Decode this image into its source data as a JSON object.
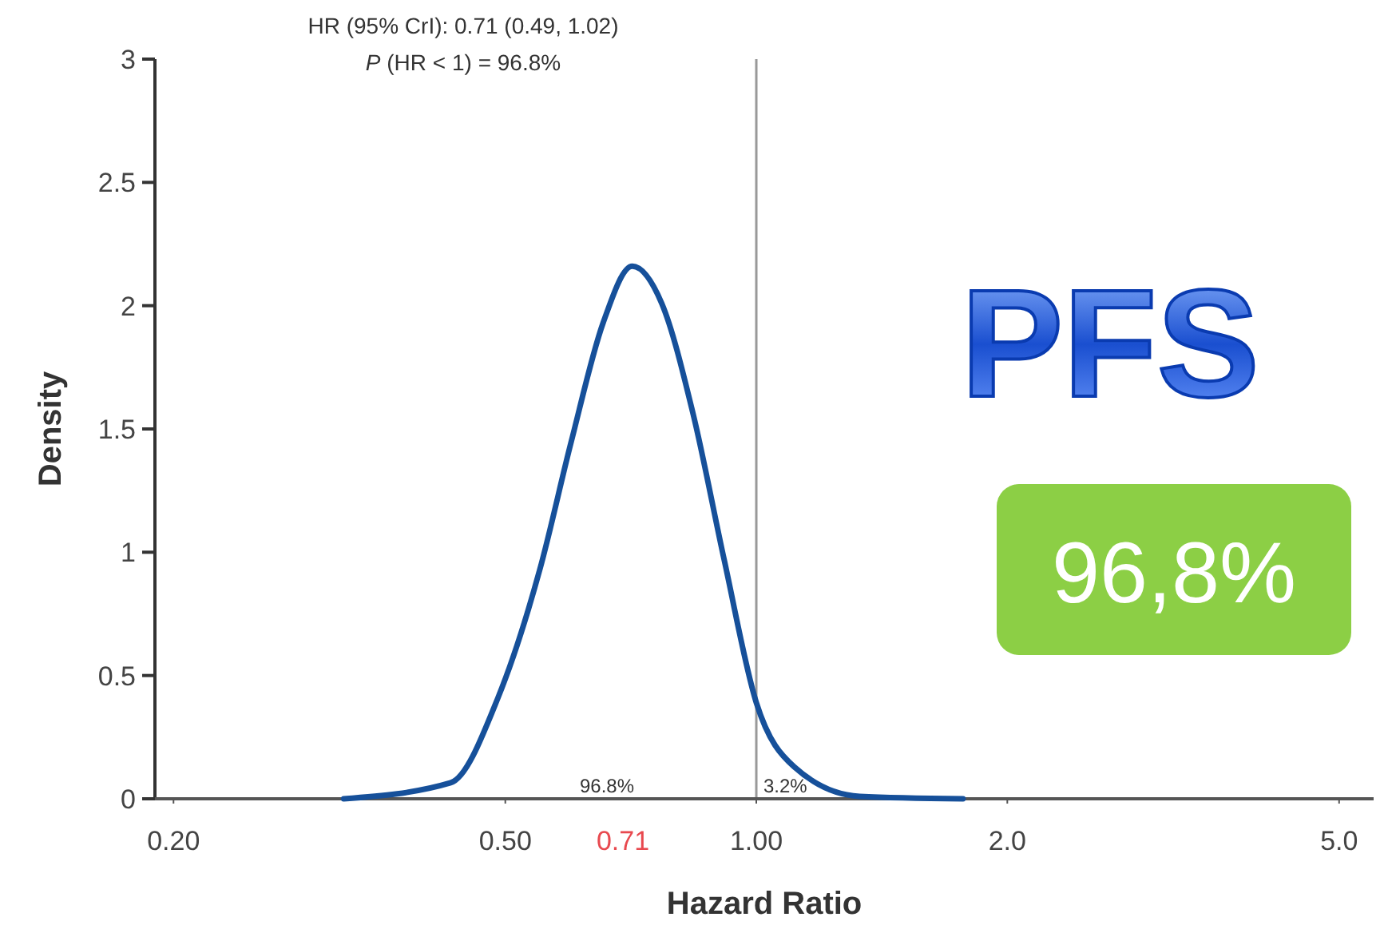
{
  "chart_data": {
    "type": "line",
    "title": "HR (95% CrI): 0.71 (0.49, 1.02)",
    "subtitle": "P (HR < 1) = 96.8%",
    "xlabel": "Hazard Ratio",
    "ylabel": "Density",
    "log": "x",
    "xlim": [
      0.19,
      5.5
    ],
    "xticks": [
      {
        "value": 0.2,
        "label": "0.20"
      },
      {
        "value": 0.5,
        "label": "0.50"
      },
      {
        "value": 1,
        "label": "1.00"
      },
      {
        "value": 2,
        "label": "2.0"
      },
      {
        "value": 5,
        "label": "5.0"
      }
    ],
    "ylim": [
      0,
      3
    ],
    "yticks": [
      0,
      0.5,
      1,
      1.5,
      2,
      2.5,
      3
    ],
    "grid": false,
    "marker": "none",
    "line_style": "solid",
    "series": [
      {
        "color": "#16509a",
        "x": [
          0.32,
          0.43,
          0.49,
          0.55,
          0.6,
          0.655,
          0.71,
          0.77,
          0.84,
          0.915,
          1.0,
          1.11,
          1.33,
          1.77
        ],
        "values": [
          0,
          0.065,
          0.41,
          0.93,
          1.45,
          1.93,
          2.16,
          2.01,
          1.56,
          0.97,
          0.39,
          0.13,
          0.01,
          0
        ]
      }
    ],
    "ref_lines": [
      {
        "axis": "x",
        "value": 1,
        "color": "#999999"
      }
    ],
    "annotations": [
      "96.8%",
      "3.2%",
      "0.71",
      "PFS",
      "96,8%"
    ]
  }
}
